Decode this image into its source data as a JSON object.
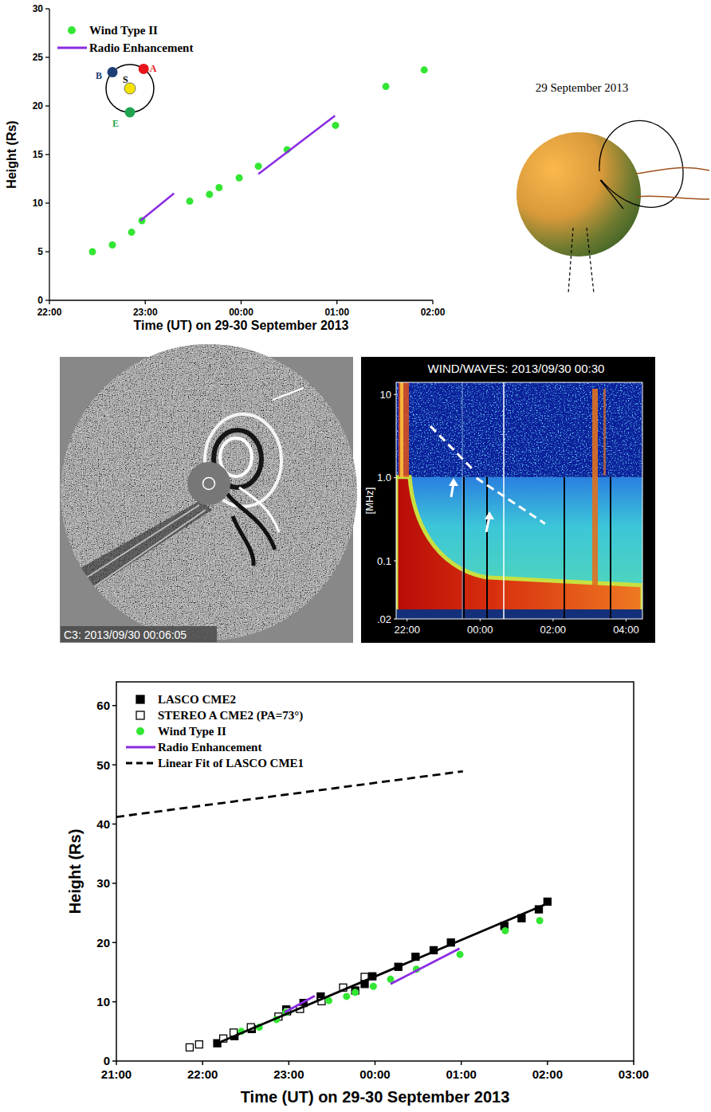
{
  "chart_data": [
    {
      "type": "scatter",
      "x_label": "Time (UT) on 29-30 September 2013",
      "y_label": "Height (Rs)",
      "xlim": [
        22,
        26
      ],
      "xticks": [
        {
          "value": 22,
          "label": "22:00"
        },
        {
          "value": 23,
          "label": "23:00"
        },
        {
          "value": 24,
          "label": "00:00"
        },
        {
          "value": 25,
          "label": "01:00"
        },
        {
          "value": 26,
          "label": "02:00"
        }
      ],
      "ylim": [
        0,
        30
      ],
      "yticks": [
        0,
        5,
        10,
        15,
        20,
        25,
        30
      ],
      "grid": false,
      "legend": "top-left",
      "series": [
        {
          "name": "Wind Type II",
          "type": "scatter",
          "marker": "circle",
          "color": "#33e633",
          "x": [
            22.449,
            22.657,
            22.857,
            22.965,
            23.464,
            23.67,
            23.77,
            23.98,
            24.18,
            24.48,
            24.985,
            25.51,
            25.91
          ],
          "values": [
            5.0,
            5.7,
            7.0,
            8.2,
            10.2,
            10.9,
            11.6,
            12.6,
            13.8,
            15.5,
            18.0,
            22.0,
            23.7
          ]
        },
        {
          "name": "Radio Enhancement",
          "type": "line",
          "line_style": "solid",
          "color": "#8a2be2",
          "x": [
            22.95,
            23.3,
            null,
            24.18,
            24.98
          ],
          "values": [
            8.2,
            11.0,
            null,
            13.0,
            19.0
          ]
        }
      ]
    },
    {
      "type": "spectrogram",
      "title": "WIND/WAVES: 2013/09/30 00:30",
      "y_label": "[MHz]",
      "log": "y",
      "xlim": [
        21.7,
        28.45
      ],
      "xticks": [
        {
          "value": 22,
          "label": "22:00"
        },
        {
          "value": 24,
          "label": "00:00"
        },
        {
          "value": 26,
          "label": "02:00"
        },
        {
          "value": 28,
          "label": "04:00"
        }
      ],
      "ylim": [
        0.02,
        14
      ],
      "yticks": [
        10,
        {
          "value": 1,
          "label": "1.0"
        },
        0.1,
        {
          "value": 0.02,
          "label": ".02"
        }
      ],
      "grid": false,
      "series": [
        {
          "type": "line",
          "line_style": "dashed",
          "color": "#ffffff",
          "x": [
            22.64,
            23.86,
            null,
            23.9,
            25.78
          ],
          "values": [
            4.16,
            1.18,
            null,
            0.99,
            0.28
          ]
        }
      ]
    },
    {
      "type": "scatter",
      "x_label": "Time (UT) on 29-30 September 2013",
      "y_label": "Height (Rs)",
      "xlim": [
        21,
        27
      ],
      "xticks": [
        {
          "value": 21,
          "label": "21:00"
        },
        {
          "value": 22,
          "label": "22:00"
        },
        {
          "value": 23,
          "label": "23:00"
        },
        {
          "value": 24,
          "label": "00:00"
        },
        {
          "value": 25,
          "label": "01:00"
        },
        {
          "value": 26,
          "label": "02:00"
        },
        {
          "value": 27,
          "label": "03:00"
        }
      ],
      "ylim": [
        0,
        64
      ],
      "yticks": [
        0,
        10,
        20,
        30,
        40,
        50,
        60
      ],
      "grid": false,
      "legend": "top-left",
      "series": [
        {
          "name": "LASCO CME2",
          "type": "scatter",
          "marker": "square",
          "color": "#000000",
          "x": [
            22.17,
            22.37,
            22.57,
            22.97,
            23.17,
            23.37,
            23.77,
            23.88,
            23.97,
            24.27,
            24.47,
            24.68,
            24.88,
            25.5,
            25.7,
            25.9,
            26.0
          ],
          "values": [
            3.0,
            4.2,
            5.4,
            8.7,
            9.8,
            10.9,
            11.9,
            13.0,
            14.3,
            15.9,
            17.6,
            18.7,
            20.0,
            22.8,
            24.1,
            25.6,
            26.9
          ]
        },
        {
          "name": "STEREO A CME2 (PA=73°)",
          "type": "scatter",
          "marker": "square-open",
          "color": "#000000",
          "x": [
            21.85,
            21.96,
            22.24,
            22.36,
            22.56,
            22.88,
            22.98,
            23.13,
            23.38,
            23.63,
            23.88
          ],
          "values": [
            2.3,
            2.8,
            3.8,
            4.8,
            5.7,
            7.5,
            8.4,
            8.8,
            10.1,
            12.4,
            14.2
          ]
        },
        {
          "name": "Wind Type II",
          "type": "scatter",
          "marker": "circle",
          "color": "#33e633",
          "x": [
            22.449,
            22.657,
            22.857,
            22.965,
            23.464,
            23.67,
            23.77,
            23.98,
            24.18,
            24.48,
            24.985,
            25.51,
            25.91
          ],
          "values": [
            5.0,
            5.7,
            7.0,
            8.2,
            10.2,
            10.9,
            11.6,
            12.6,
            13.8,
            15.5,
            18.0,
            22.0,
            23.7
          ]
        },
        {
          "name": "Radio Enhancement",
          "type": "line",
          "line_style": "solid",
          "color": "#8a2be2",
          "x": [
            22.95,
            23.3,
            null,
            24.18,
            24.98
          ],
          "values": [
            8.2,
            11.0,
            null,
            13.0,
            19.0
          ]
        },
        {
          "name": "Linear Fit of LASCO CME1",
          "type": "line",
          "line_style": "dashed",
          "color": "#000000",
          "x": [
            21.0,
            25.02
          ],
          "values": [
            41.2,
            48.9
          ]
        },
        {
          "type": "line",
          "line_style": "solid",
          "color": "#000000",
          "x": [
            22.17,
            26.0
          ],
          "values": [
            3.0,
            26.6
          ]
        }
      ]
    }
  ],
  "orbit_inset": {
    "sun": {
      "label": "S",
      "color": "#f5e400"
    },
    "spacecraft": [
      {
        "label": "B",
        "color": "#1c3f75"
      },
      {
        "label": "A",
        "color": "#e8141b"
      },
      {
        "label": "E",
        "color": "#1fa550"
      }
    ]
  },
  "sketch": {
    "title": "29 September 2013"
  },
  "lasco_image": {
    "caption": "C3: 2013/09/30 00:06:05"
  }
}
